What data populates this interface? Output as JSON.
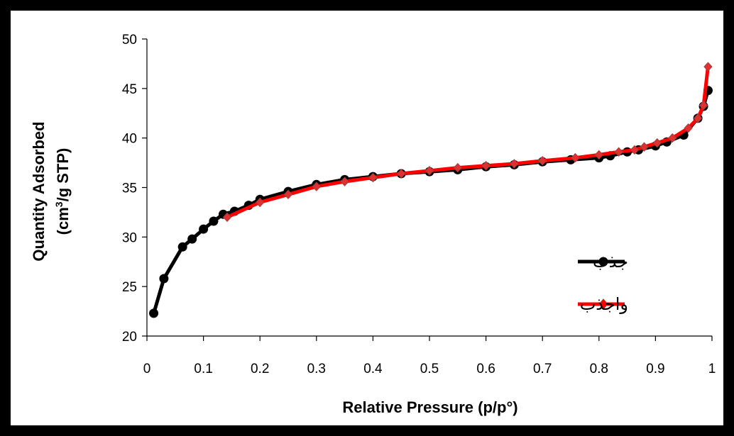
{
  "chart_data": {
    "type": "line",
    "title": "",
    "xlabel": "Relative Pressure (p/p°)",
    "ylabel_line1": "Quantity Adsorbed",
    "ylabel_line2_prefix": "(cm",
    "ylabel_line2_sup": "3",
    "ylabel_line2_suffix": "/g STP)",
    "xlim": [
      0,
      1
    ],
    "ylim": [
      20,
      50
    ],
    "x_ticks": [
      0,
      0.1,
      0.2,
      0.3,
      0.4,
      0.5,
      0.6,
      0.7,
      0.8,
      0.9,
      1
    ],
    "x_tick_labels": [
      "0",
      "0.1",
      "0.2",
      "0.3",
      "0.4",
      "0.5",
      "0.6",
      "0.7",
      "0.8",
      "0.9",
      "1"
    ],
    "y_ticks": [
      20,
      25,
      30,
      35,
      40,
      45,
      50
    ],
    "y_tick_labels": [
      "20",
      "25",
      "30",
      "35",
      "40",
      "45",
      "50"
    ],
    "grid": false,
    "legend_position": "right",
    "series": [
      {
        "name": "جذب",
        "color": "#000000",
        "marker": "circle",
        "x": [
          0.012,
          0.03,
          0.063,
          0.08,
          0.1,
          0.118,
          0.135,
          0.155,
          0.18,
          0.2,
          0.25,
          0.3,
          0.35,
          0.4,
          0.45,
          0.5,
          0.55,
          0.6,
          0.65,
          0.7,
          0.75,
          0.8,
          0.82,
          0.85,
          0.87,
          0.9,
          0.92,
          0.95,
          0.975,
          0.985,
          0.993
        ],
        "y": [
          22.3,
          25.8,
          29.0,
          29.8,
          30.8,
          31.6,
          32.3,
          32.6,
          33.2,
          33.8,
          34.6,
          35.3,
          35.8,
          36.1,
          36.4,
          36.6,
          36.8,
          37.1,
          37.3,
          37.6,
          37.8,
          38.0,
          38.2,
          38.6,
          38.8,
          39.2,
          39.6,
          40.3,
          42.0,
          43.2,
          44.8
        ]
      },
      {
        "name": "واجذب",
        "color": "#ff0000",
        "marker": "diamond",
        "x": [
          0.142,
          0.2,
          0.25,
          0.3,
          0.35,
          0.4,
          0.45,
          0.5,
          0.55,
          0.6,
          0.65,
          0.7,
          0.758,
          0.8,
          0.835,
          0.863,
          0.88,
          0.903,
          0.93,
          0.958,
          0.975,
          0.985,
          0.993
        ],
        "y": [
          32.0,
          33.5,
          34.3,
          35.1,
          35.6,
          36.0,
          36.4,
          36.7,
          37.0,
          37.2,
          37.4,
          37.7,
          38.0,
          38.3,
          38.6,
          38.8,
          39.1,
          39.5,
          40.0,
          41.0,
          42.0,
          43.3,
          47.2
        ]
      }
    ]
  }
}
